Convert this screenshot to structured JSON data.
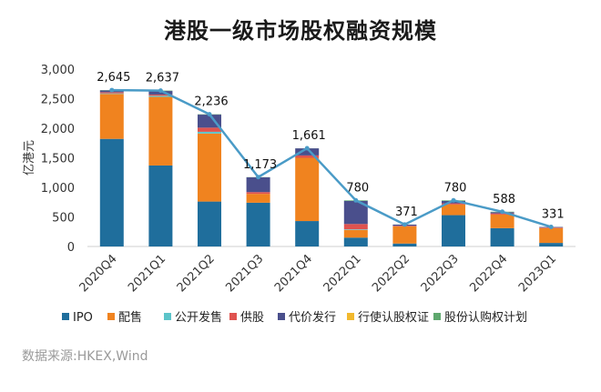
{
  "title": "港股一级市场股权融资规模",
  "source": "数据来源:HKEX,Wind",
  "chart_data": {
    "type": "bar",
    "stacked": true,
    "title": "港股一级市场股权融资规模",
    "ylabel": "亿港元",
    "xlabel": "",
    "ylim": [
      0,
      3000
    ],
    "yticks": [
      "0",
      "500",
      "1,000",
      "1,500",
      "2,000",
      "2,500",
      "3,000"
    ],
    "categories": [
      "2020Q4",
      "2021Q1",
      "2021Q2",
      "2021Q3",
      "2021Q4",
      "2022Q1",
      "2022Q2",
      "2022Q3",
      "2022Q4",
      "2023Q1"
    ],
    "series": [
      {
        "name": "IPO",
        "color": "#1f6e9c",
        "values": [
          1820,
          1370,
          760,
          740,
          430,
          150,
          50,
          530,
          310,
          60
        ]
      },
      {
        "name": "配售",
        "color": "#f0831f",
        "values": [
          760,
          1160,
          1150,
          150,
          1070,
          130,
          290,
          180,
          230,
          250
        ]
      },
      {
        "name": "公开发售",
        "color": "#5cc4c9",
        "values": [
          10,
          20,
          30,
          0,
          0,
          10,
          0,
          0,
          0,
          0
        ]
      },
      {
        "name": "供股",
        "color": "#e0534f",
        "values": [
          20,
          20,
          70,
          30,
          40,
          90,
          10,
          20,
          20,
          10
        ]
      },
      {
        "name": "代价发行",
        "color": "#4a4f8c",
        "values": [
          30,
          60,
          220,
          250,
          120,
          390,
          20,
          40,
          20,
          10
        ]
      },
      {
        "name": "行使认股权证",
        "color": "#f2b92e",
        "values": [
          0,
          0,
          0,
          0,
          0,
          0,
          0,
          0,
          0,
          0
        ]
      },
      {
        "name": "股份认购权计划",
        "color": "#5ea86e",
        "values": [
          5,
          7,
          6,
          3,
          1,
          10,
          1,
          10,
          8,
          1
        ]
      }
    ],
    "totals": [
      2645,
      2637,
      2236,
      1173,
      1661,
      780,
      371,
      780,
      588,
      331
    ],
    "total_labels": [
      "2,645",
      "2,637",
      "2,236",
      "1,173",
      "1,661",
      "780",
      "371",
      "780",
      "588",
      "331"
    ],
    "line_color": "#4a9bc7",
    "grid": false,
    "legend": "bottom"
  }
}
